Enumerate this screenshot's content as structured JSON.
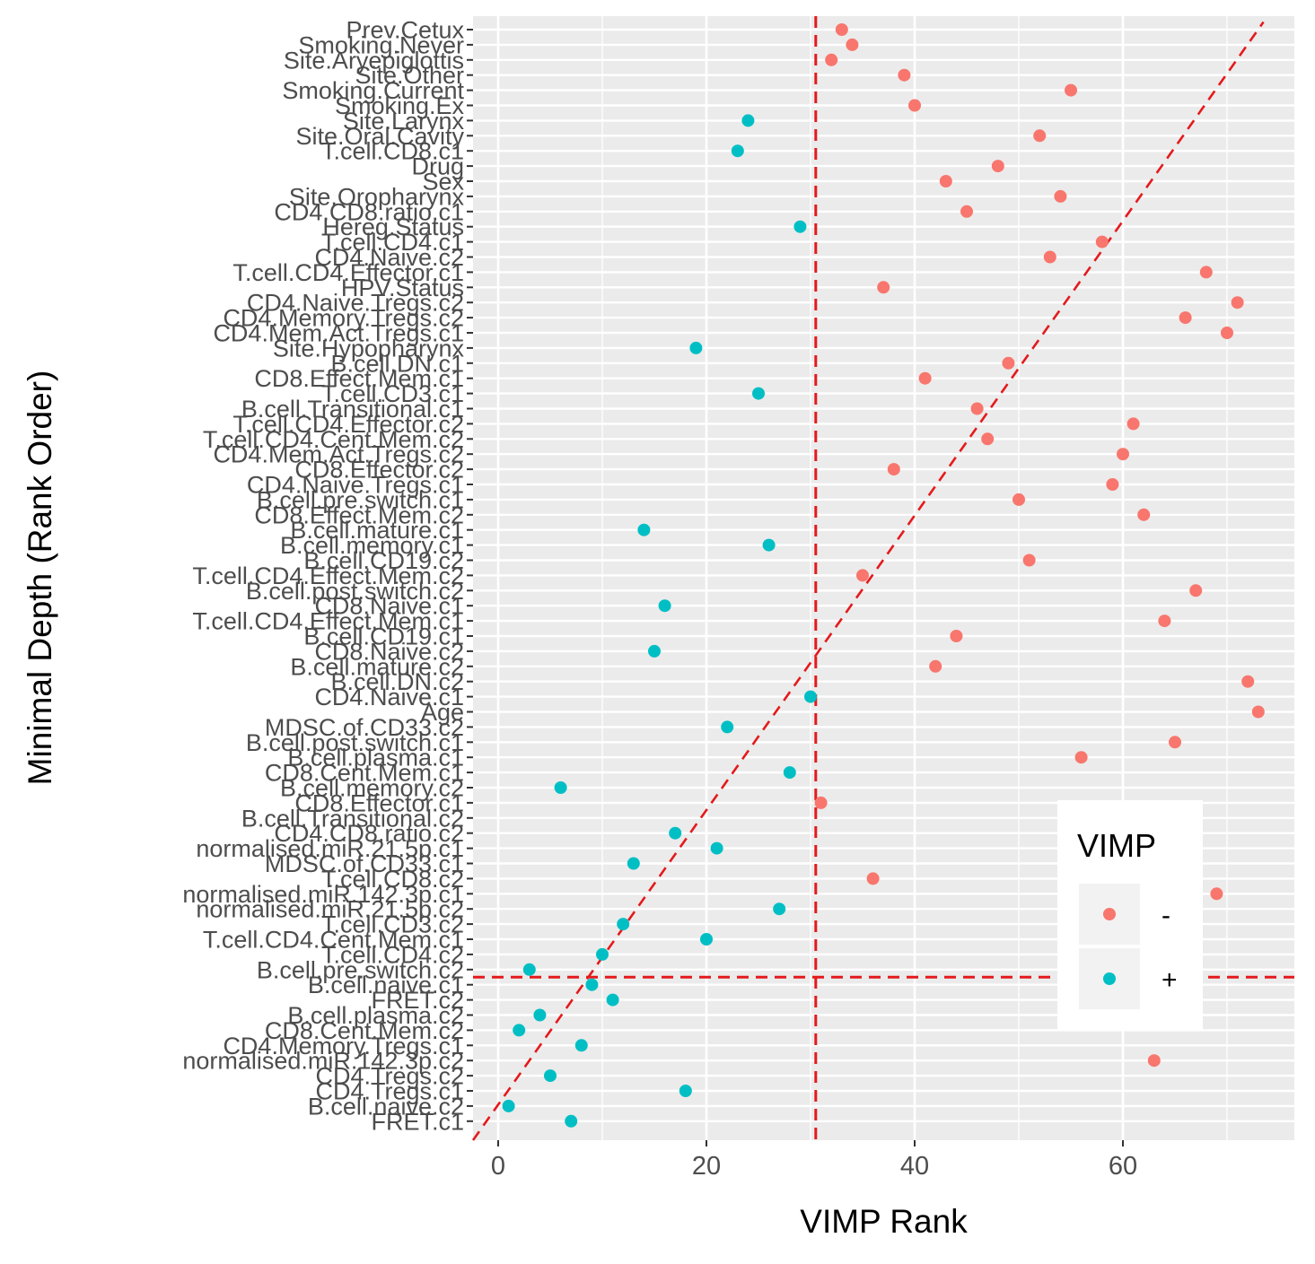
{
  "chart_data": {
    "type": "scatter",
    "xlabel": "VIMP Rank",
    "ylabel": "Minimal Depth (Rank Order)",
    "xlim": [
      -2.5,
      76.0
    ],
    "x_ticks": [
      0,
      20,
      40,
      60
    ],
    "grid": true,
    "legend": {
      "title": "VIMP",
      "placement": "right-inside",
      "entries": [
        "-",
        "+"
      ]
    },
    "colors": {
      "-": "#F8766D",
      "+": "#00BFC4",
      "reference": "#E41A1C",
      "panel": "#EBEBEB"
    },
    "reference_lines": {
      "vertical_x": 30.5,
      "horizontal_category": "B.cell.pre.switch.c2",
      "diagonal": "y = x"
    },
    "categories": [
      "Prev.Cetux",
      "Smoking.Never",
      "Site.Aryepiglottis",
      "Site.Other",
      "Smoking.Current",
      "Smoking.Ex",
      "Site.Larynx",
      "Site.Oral.Cavity",
      "T.cell.CD8.c1",
      "Drug",
      "Sex",
      "Site.Oropharynx",
      "CD4.CD8.ratio.c1",
      "Hereg.Status",
      "T.cell.CD4.c1",
      "CD4.Naive.c2",
      "T.cell.CD4.Effector.c1",
      "HPV.Status",
      "CD4.Naive.Tregs.c2",
      "CD4.Memory.Tregs.c2",
      "CD4.Mem.Act.Tregs.c1",
      "Site.Hypopharynx",
      "B.cell.DN.c1",
      "CD8.Effect.Mem.c1",
      "T.cell.CD3.c1",
      "B.cell.Transitional.c1",
      "T.cell.CD4.Effector.c2",
      "T.cell.CD4.Cent.Mem.c2",
      "CD4.Mem.Act.Tregs.c2",
      "CD8.Effector.c2",
      "CD4.Naive.Tregs.c1",
      "B.cell.pre.switch.c1",
      "CD8.Effect.Mem.c2",
      "B.cell.mature.c1",
      "B.cell.memory.c1",
      "B.cell.CD19.c2",
      "T.cell.CD4.Effect.Mem.c2",
      "B.cell.post.switch.c2",
      "CD8.Naive.c1",
      "T.cell.CD4.Effect.Mem.c1",
      "B.cell.CD19.c1",
      "CD8.Naive.c2",
      "B.cell.mature.c2",
      "B.cell.DN.c2",
      "CD4.Naive.c1",
      "Age",
      "MDSC.of.CD33.c2",
      "B.cell.post.switch.c1",
      "B.cell.plasma.c1",
      "CD8.Cent.Mem.c1",
      "B.cell.memory.c2",
      "CD8.Effector.c1",
      "B.cell.Transitional.c2",
      "CD4.CD8.ratio.c2",
      "normalised.miR.21.5p.c1",
      "MDSC.of.CD33.c1",
      "T.cell.CD8.c2",
      "normalised.miR.142.3p.c1",
      "normalised.miR.21.5p.c2",
      "T.cell.CD3.c2",
      "T.cell.CD4.Cent.Mem.c1",
      "T.cell.CD4.c2",
      "B.cell.pre.switch.c2",
      "B.cell.naive.c1",
      "FRET.c2",
      "B.cell.plasma.c2",
      "CD8.Cent.Mem.c2",
      "CD4.Memory.Tregs.c1",
      "normalised.miR.142.3p.c2",
      "CD4.Tregs.c2",
      "CD4.Tregs.c1",
      "B.cell.naive.c2",
      "FRET.c1"
    ],
    "series": [
      {
        "name": "-",
        "points": [
          {
            "x": 33,
            "y": "Prev.Cetux"
          },
          {
            "x": 34,
            "y": "Smoking.Never"
          },
          {
            "x": 32,
            "y": "Site.Aryepiglottis"
          },
          {
            "x": 39,
            "y": "Site.Other"
          },
          {
            "x": 55,
            "y": "Smoking.Current"
          },
          {
            "x": 40,
            "y": "Smoking.Ex"
          },
          {
            "x": 52,
            "y": "Site.Oral.Cavity"
          },
          {
            "x": 48,
            "y": "Drug"
          },
          {
            "x": 43,
            "y": "Sex"
          },
          {
            "x": 54,
            "y": "Site.Oropharynx"
          },
          {
            "x": 45,
            "y": "CD4.CD8.ratio.c1"
          },
          {
            "x": 58,
            "y": "T.cell.CD4.c1"
          },
          {
            "x": 53,
            "y": "CD4.Naive.c2"
          },
          {
            "x": 68,
            "y": "T.cell.CD4.Effector.c1"
          },
          {
            "x": 37,
            "y": "HPV.Status"
          },
          {
            "x": 71,
            "y": "CD4.Naive.Tregs.c2"
          },
          {
            "x": 66,
            "y": "CD4.Memory.Tregs.c2"
          },
          {
            "x": 70,
            "y": "CD4.Mem.Act.Tregs.c1"
          },
          {
            "x": 49,
            "y": "B.cell.DN.c1"
          },
          {
            "x": 41,
            "y": "CD8.Effect.Mem.c1"
          },
          {
            "x": 46,
            "y": "B.cell.Transitional.c1"
          },
          {
            "x": 61,
            "y": "T.cell.CD4.Effector.c2"
          },
          {
            "x": 47,
            "y": "T.cell.CD4.Cent.Mem.c2"
          },
          {
            "x": 60,
            "y": "CD4.Mem.Act.Tregs.c2"
          },
          {
            "x": 38,
            "y": "CD8.Effector.c2"
          },
          {
            "x": 59,
            "y": "CD4.Naive.Tregs.c1"
          },
          {
            "x": 50,
            "y": "B.cell.pre.switch.c1"
          },
          {
            "x": 62,
            "y": "CD8.Effect.Mem.c2"
          },
          {
            "x": 51,
            "y": "B.cell.CD19.c2"
          },
          {
            "x": 35,
            "y": "T.cell.CD4.Effect.Mem.c2"
          },
          {
            "x": 67,
            "y": "B.cell.post.switch.c2"
          },
          {
            "x": 64,
            "y": "T.cell.CD4.Effect.Mem.c1"
          },
          {
            "x": 44,
            "y": "B.cell.CD19.c1"
          },
          {
            "x": 42,
            "y": "B.cell.mature.c2"
          },
          {
            "x": 72,
            "y": "B.cell.DN.c2"
          },
          {
            "x": 73,
            "y": "Age"
          },
          {
            "x": 65,
            "y": "B.cell.post.switch.c1"
          },
          {
            "x": 56,
            "y": "B.cell.plasma.c1"
          },
          {
            "x": 31,
            "y": "CD8.Effector.c1"
          },
          {
            "x": 36,
            "y": "T.cell.CD8.c2"
          },
          {
            "x": 69,
            "y": "normalised.miR.142.3p.c1"
          },
          {
            "x": 63,
            "y": "normalised.miR.142.3p.c2"
          }
        ]
      },
      {
        "name": "+",
        "points": [
          {
            "x": 24,
            "y": "Site.Larynx"
          },
          {
            "x": 23,
            "y": "T.cell.CD8.c1"
          },
          {
            "x": 29,
            "y": "Hereg.Status"
          },
          {
            "x": 19,
            "y": "Site.Hypopharynx"
          },
          {
            "x": 25,
            "y": "T.cell.CD3.c1"
          },
          {
            "x": 14,
            "y": "B.cell.mature.c1"
          },
          {
            "x": 26,
            "y": "B.cell.memory.c1"
          },
          {
            "x": 16,
            "y": "CD8.Naive.c1"
          },
          {
            "x": 15,
            "y": "CD8.Naive.c2"
          },
          {
            "x": 30,
            "y": "CD4.Naive.c1"
          },
          {
            "x": 22,
            "y": "MDSC.of.CD33.c2"
          },
          {
            "x": 28,
            "y": "CD8.Cent.Mem.c1"
          },
          {
            "x": 6,
            "y": "B.cell.memory.c2"
          },
          {
            "x": 17,
            "y": "CD4.CD8.ratio.c2"
          },
          {
            "x": 21,
            "y": "normalised.miR.21.5p.c1"
          },
          {
            "x": 13,
            "y": "MDSC.of.CD33.c1"
          },
          {
            "x": 27,
            "y": "normalised.miR.21.5p.c2"
          },
          {
            "x": 12,
            "y": "T.cell.CD3.c2"
          },
          {
            "x": 20,
            "y": "T.cell.CD4.Cent.Mem.c1"
          },
          {
            "x": 10,
            "y": "T.cell.CD4.c2"
          },
          {
            "x": 3,
            "y": "B.cell.pre.switch.c2"
          },
          {
            "x": 9,
            "y": "B.cell.naive.c1"
          },
          {
            "x": 11,
            "y": "FRET.c2"
          },
          {
            "x": 4,
            "y": "B.cell.plasma.c2"
          },
          {
            "x": 2,
            "y": "CD8.Cent.Mem.c2"
          },
          {
            "x": 8,
            "y": "CD4.Memory.Tregs.c1"
          },
          {
            "x": 5,
            "y": "CD4.Tregs.c2"
          },
          {
            "x": 18,
            "y": "CD4.Tregs.c1"
          },
          {
            "x": 1,
            "y": "B.cell.naive.c2"
          },
          {
            "x": 7,
            "y": "FRET.c1"
          }
        ]
      }
    ]
  }
}
